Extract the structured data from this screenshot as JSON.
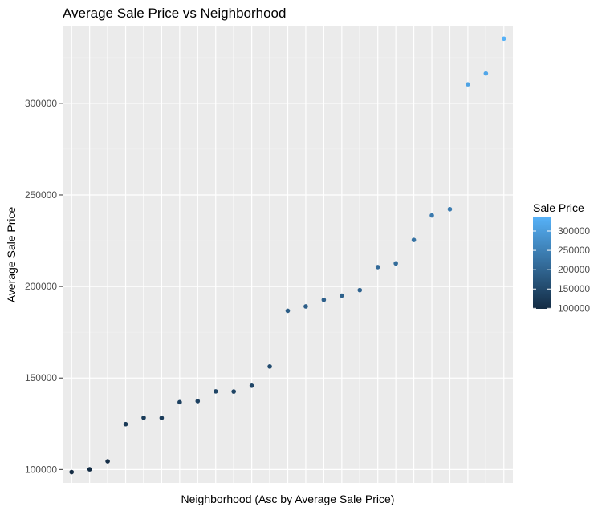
{
  "chart_data": {
    "type": "scatter",
    "title": "Average Sale Price vs Neighborhood",
    "xlabel": "Neighborhood (Asc by Average Sale Price)",
    "ylabel": "Average Sale Price",
    "x": [
      1,
      2,
      3,
      4,
      5,
      6,
      7,
      8,
      9,
      10,
      11,
      12,
      13,
      14,
      15,
      16,
      17,
      18,
      19,
      20,
      21,
      22,
      23,
      24,
      25
    ],
    "values": [
      98600,
      100100,
      104500,
      124800,
      128300,
      128200,
      136800,
      137400,
      142700,
      142600,
      145800,
      156300,
      186700,
      189100,
      192700,
      195000,
      198000,
      210600,
      212600,
      225400,
      238800,
      242200,
      310400,
      316300,
      335300
    ],
    "xlim": [
      0.5,
      25.5
    ],
    "ylim": [
      92700,
      342000
    ],
    "yticks": [
      100000,
      150000,
      200000,
      250000,
      300000
    ],
    "ytick_labels": [
      "100000",
      "150000",
      "200000",
      "250000",
      "300000"
    ],
    "grid": true,
    "x_tick_labels_shown": false,
    "color_scale": {
      "low_color": "#132b43",
      "high_color": "#56b1f7",
      "min": 98600,
      "max": 335300
    },
    "legend": {
      "title": "Sale Price",
      "placement": "right",
      "ticks": [
        100000,
        150000,
        200000,
        250000,
        300000
      ],
      "tick_labels": [
        "100000",
        "150000",
        "200000",
        "250000",
        "300000"
      ]
    },
    "colors": {
      "panel_background": "#ebebeb",
      "grid_major": "#ffffff",
      "grid_minor": "#f2f2f2",
      "tick_text": "#4d4d4d"
    }
  }
}
